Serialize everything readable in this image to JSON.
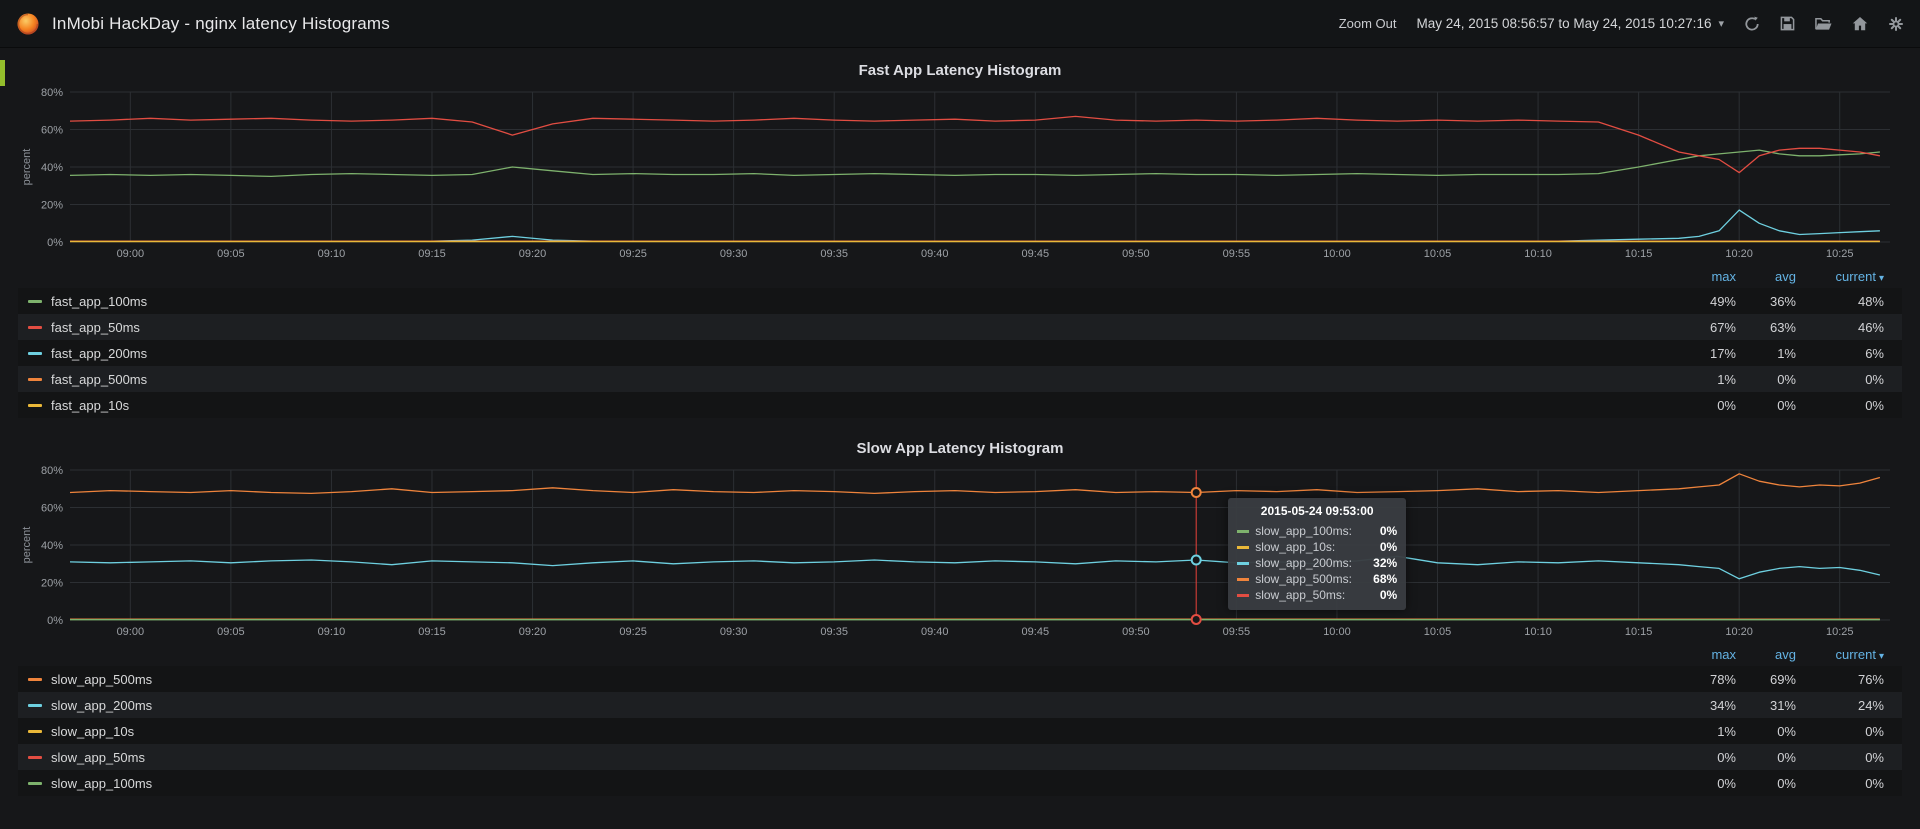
{
  "navbar": {
    "title": "InMobi HackDay - nginx latency Histograms",
    "zoom_out": "Zoom Out",
    "time_range": "May 24, 2015 08:56:57 to May 24, 2015 10:27:16",
    "icons": [
      "grafana-logo",
      "refresh",
      "save",
      "folder-open",
      "home",
      "gear"
    ]
  },
  "colors": {
    "page_bg": "#161719",
    "navbar_bg": "#131517",
    "legend_header_link": "#64b3e4",
    "crosshair": "#e8413a",
    "green": "#7EB26D",
    "red": "#E24D42",
    "blue": "#6ED0E0",
    "orange": "#EF843C",
    "yellow": "#EAB839"
  },
  "legend_headers": {
    "max": "max",
    "avg": "avg",
    "current": "current"
  },
  "panels": [
    {
      "title": "Fast App Latency Histogram",
      "ylabel": "percent",
      "legend": [
        {
          "name": "fast_app_100ms",
          "color": "#7EB26D",
          "max": "49%",
          "avg": "36%",
          "current": "48%"
        },
        {
          "name": "fast_app_50ms",
          "color": "#E24D42",
          "max": "67%",
          "avg": "63%",
          "current": "46%"
        },
        {
          "name": "fast_app_200ms",
          "color": "#6ED0E0",
          "max": "17%",
          "avg": "1%",
          "current": "6%"
        },
        {
          "name": "fast_app_500ms",
          "color": "#EF843C",
          "max": "1%",
          "avg": "0%",
          "current": "0%"
        },
        {
          "name": "fast_app_10s",
          "color": "#EAB839",
          "max": "0%",
          "avg": "0%",
          "current": "0%"
        }
      ]
    },
    {
      "title": "Slow App Latency Histogram",
      "ylabel": "percent",
      "legend": [
        {
          "name": "slow_app_500ms",
          "color": "#EF843C",
          "max": "78%",
          "avg": "69%",
          "current": "76%"
        },
        {
          "name": "slow_app_200ms",
          "color": "#6ED0E0",
          "max": "34%",
          "avg": "31%",
          "current": "24%"
        },
        {
          "name": "slow_app_10s",
          "color": "#EAB839",
          "max": "1%",
          "avg": "0%",
          "current": "0%"
        },
        {
          "name": "slow_app_50ms",
          "color": "#E24D42",
          "max": "0%",
          "avg": "0%",
          "current": "0%"
        },
        {
          "name": "slow_app_100ms",
          "color": "#7EB26D",
          "max": "0%",
          "avg": "0%",
          "current": "0%"
        }
      ]
    }
  ],
  "tooltip": {
    "time": "2015-05-24 09:53:00",
    "rows": [
      {
        "name": "slow_app_100ms:",
        "value": "0%",
        "color": "#7EB26D"
      },
      {
        "name": "slow_app_10s:",
        "value": "0%",
        "color": "#EAB839"
      },
      {
        "name": "slow_app_200ms:",
        "value": "32%",
        "color": "#6ED0E0"
      },
      {
        "name": "slow_app_500ms:",
        "value": "68%",
        "color": "#EF843C"
      },
      {
        "name": "slow_app_50ms:",
        "value": "0%",
        "color": "#E24D42"
      }
    ]
  },
  "chart_data": [
    {
      "type": "line",
      "title": "Fast App Latency Histogram",
      "ylabel": "percent",
      "ylim": [
        0,
        80
      ],
      "xrange": [
        0,
        90.5
      ],
      "grid": true,
      "legend_position": "under",
      "yticks": [
        {
          "v": 0,
          "label": "0%"
        },
        {
          "v": 20,
          "label": "20%"
        },
        {
          "v": 40,
          "label": "40%"
        },
        {
          "v": 60,
          "label": "60%"
        },
        {
          "v": 80,
          "label": "80%"
        }
      ],
      "xticks": [
        {
          "t": 3,
          "label": "09:00"
        },
        {
          "t": 8,
          "label": "09:05"
        },
        {
          "t": 13,
          "label": "09:10"
        },
        {
          "t": 18,
          "label": "09:15"
        },
        {
          "t": 23,
          "label": "09:20"
        },
        {
          "t": 28,
          "label": "09:25"
        },
        {
          "t": 33,
          "label": "09:30"
        },
        {
          "t": 38,
          "label": "09:35"
        },
        {
          "t": 43,
          "label": "09:40"
        },
        {
          "t": 48,
          "label": "09:45"
        },
        {
          "t": 53,
          "label": "09:50"
        },
        {
          "t": 58,
          "label": "09:55"
        },
        {
          "t": 63,
          "label": "10:00"
        },
        {
          "t": 68,
          "label": "10:05"
        },
        {
          "t": 73,
          "label": "10:10"
        },
        {
          "t": 78,
          "label": "10:15"
        },
        {
          "t": 83,
          "label": "10:20"
        },
        {
          "t": 88,
          "label": "10:25"
        }
      ],
      "x": [
        0,
        2,
        4,
        6,
        8,
        10,
        12,
        14,
        16,
        18,
        20,
        22,
        24,
        26,
        28,
        30,
        32,
        34,
        36,
        38,
        40,
        42,
        44,
        46,
        48,
        50,
        52,
        54,
        56,
        58,
        60,
        62,
        64,
        66,
        68,
        70,
        72,
        74,
        76,
        78,
        80,
        81,
        82,
        83,
        84,
        85,
        86,
        87,
        88,
        89,
        90
      ],
      "series": [
        {
          "name": "fast_app_100ms",
          "color": "#7EB26D",
          "values": [
            35.5,
            36,
            35.5,
            36,
            35.5,
            35,
            36,
            36.5,
            36,
            35.5,
            36,
            40,
            38,
            36,
            36.5,
            36,
            36,
            36.5,
            35.5,
            36,
            36.5,
            36,
            35.5,
            36,
            36,
            35.5,
            36,
            36.5,
            36,
            36,
            35.5,
            36,
            36.5,
            36,
            35.5,
            36,
            36,
            36,
            36.5,
            40,
            44,
            46,
            47,
            48,
            49,
            47,
            46,
            46,
            46.5,
            47,
            48
          ]
        },
        {
          "name": "fast_app_50ms",
          "color": "#E24D42",
          "values": [
            64.5,
            65,
            66,
            65,
            65.5,
            66,
            65,
            64.5,
            65,
            66,
            64,
            57,
            63,
            66,
            65.5,
            65,
            64.5,
            65,
            66,
            65,
            64.5,
            65,
            65.5,
            64.5,
            65,
            67,
            65,
            64.5,
            65,
            64.5,
            65,
            66,
            65,
            64.5,
            65,
            64.5,
            65,
            64.5,
            64,
            57,
            48,
            46,
            44,
            37,
            46,
            49,
            50,
            50,
            49,
            48,
            46
          ]
        },
        {
          "name": "fast_app_200ms",
          "color": "#6ED0E0",
          "values": [
            0.5,
            0.5,
            0.5,
            0.5,
            0.5,
            0.5,
            0.5,
            0.5,
            0.5,
            0.5,
            1,
            3,
            1,
            0.5,
            0.5,
            0.5,
            0.5,
            0.5,
            0.5,
            0.5,
            0.5,
            0.5,
            0.5,
            0.5,
            0.5,
            0.5,
            0.5,
            0.5,
            0.5,
            0.5,
            0.5,
            0.5,
            0.5,
            0.5,
            0.5,
            0.5,
            0.5,
            0.5,
            1,
            1.5,
            2,
            3,
            6,
            17,
            10,
            6,
            4,
            4.5,
            5,
            5.5,
            6
          ]
        },
        {
          "name": "fast_app_500ms",
          "color": "#EF843C",
          "values": 0.5
        },
        {
          "name": "fast_app_10s",
          "color": "#EAB839",
          "values": 0.2
        }
      ]
    },
    {
      "type": "line",
      "title": "Slow App Latency Histogram",
      "ylabel": "percent",
      "ylim": [
        0,
        80
      ],
      "xrange": [
        0,
        90.5
      ],
      "grid": true,
      "legend_position": "under",
      "yticks": [
        {
          "v": 0,
          "label": "0%"
        },
        {
          "v": 20,
          "label": "20%"
        },
        {
          "v": 40,
          "label": "40%"
        },
        {
          "v": 60,
          "label": "60%"
        },
        {
          "v": 80,
          "label": "80%"
        }
      ],
      "xticks": [
        {
          "t": 3,
          "label": "09:00"
        },
        {
          "t": 8,
          "label": "09:05"
        },
        {
          "t": 13,
          "label": "09:10"
        },
        {
          "t": 18,
          "label": "09:15"
        },
        {
          "t": 23,
          "label": "09:20"
        },
        {
          "t": 28,
          "label": "09:25"
        },
        {
          "t": 33,
          "label": "09:30"
        },
        {
          "t": 38,
          "label": "09:35"
        },
        {
          "t": 43,
          "label": "09:40"
        },
        {
          "t": 48,
          "label": "09:45"
        },
        {
          "t": 53,
          "label": "09:50"
        },
        {
          "t": 58,
          "label": "09:55"
        },
        {
          "t": 63,
          "label": "10:00"
        },
        {
          "t": 68,
          "label": "10:05"
        },
        {
          "t": 73,
          "label": "10:10"
        },
        {
          "t": 78,
          "label": "10:15"
        },
        {
          "t": 83,
          "label": "10:20"
        },
        {
          "t": 88,
          "label": "10:25"
        }
      ],
      "x": [
        0,
        2,
        4,
        6,
        8,
        10,
        12,
        14,
        16,
        18,
        20,
        22,
        24,
        26,
        28,
        30,
        32,
        34,
        36,
        38,
        40,
        42,
        44,
        46,
        48,
        50,
        52,
        54,
        56,
        58,
        60,
        62,
        64,
        66,
        68,
        70,
        72,
        74,
        76,
        78,
        80,
        81,
        82,
        83,
        84,
        85,
        86,
        87,
        88,
        89,
        90
      ],
      "series": [
        {
          "name": "slow_app_500ms",
          "color": "#EF843C",
          "values": [
            68,
            69,
            68.5,
            68,
            69,
            68,
            67.5,
            68.5,
            70,
            68,
            68.5,
            69,
            70.5,
            69,
            68,
            69.5,
            68.5,
            68,
            69,
            68.5,
            67.5,
            68.5,
            69,
            68,
            68.5,
            69.5,
            68,
            68.5,
            68,
            69,
            68.5,
            69.5,
            68,
            68.5,
            69,
            70,
            68.5,
            69,
            68,
            69,
            70,
            71,
            72,
            78,
            74,
            72,
            71,
            72,
            71.5,
            73,
            76
          ]
        },
        {
          "name": "slow_app_200ms",
          "color": "#6ED0E0",
          "values": [
            31,
            30.5,
            31,
            31.5,
            30.5,
            31.5,
            32,
            31,
            29.5,
            31.5,
            31,
            30.5,
            29,
            30.5,
            31.5,
            30,
            31,
            31.5,
            30.5,
            31,
            32,
            31,
            30.5,
            31.5,
            31,
            30,
            31.5,
            31,
            32,
            30.5,
            31,
            30,
            31.5,
            34,
            30.5,
            29.5,
            31,
            30.5,
            31.5,
            30.5,
            29.5,
            28.5,
            27.5,
            22,
            25.5,
            27.5,
            28.5,
            27.5,
            28,
            26.5,
            24
          ]
        },
        {
          "name": "slow_app_10s",
          "color": "#EAB839",
          "values": 0.5
        },
        {
          "name": "slow_app_50ms",
          "color": "#E24D42",
          "values": 0.3
        },
        {
          "name": "slow_app_100ms",
          "color": "#7EB26D",
          "values": 0.15
        }
      ],
      "crosshair": {
        "t": 56,
        "markers": [
          {
            "color": "#EF843C",
            "value": 68
          },
          {
            "color": "#6ED0E0",
            "value": 32
          },
          {
            "color": "#E24D42",
            "value": 0.3
          }
        ]
      }
    }
  ]
}
